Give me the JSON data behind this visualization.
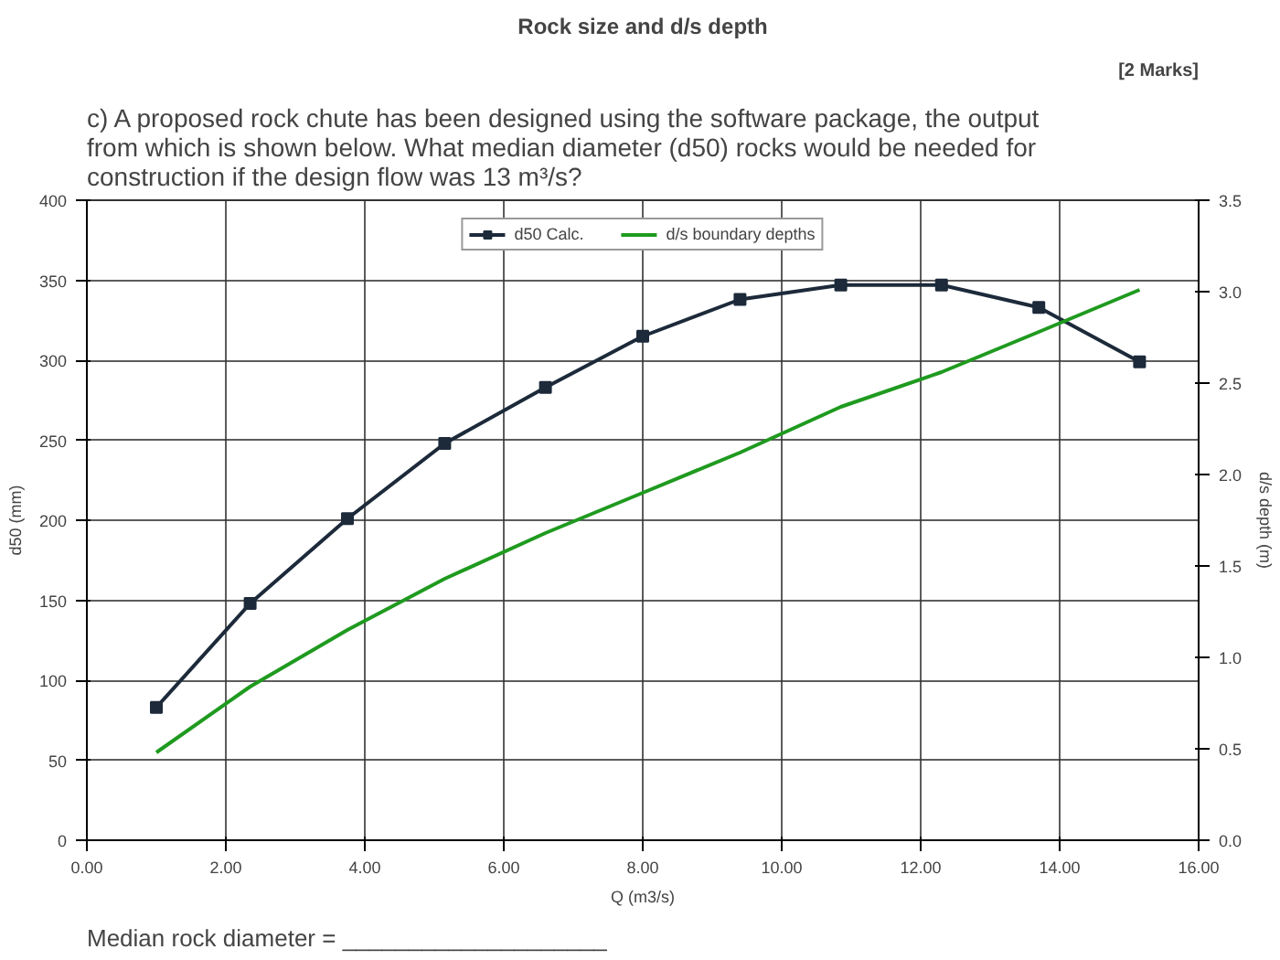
{
  "chart_data": {
    "type": "line",
    "title": "Rock size and d/s depth",
    "annotations": [
      "c) A proposed rock chute has been designed using the software package, the output from which is shown below. What median diameter (d50) rocks would be needed for construction if the design flow was 13 m³/s?",
      "[2 Marks]",
      "Median rock diameter = ____________________"
    ],
    "xlabel": "Q (m3/s)",
    "ylabel": "d50 (mm)",
    "y2label": "d/s depth (m)",
    "series": [
      {
        "name": "d50 Calc.",
        "color": "#1c2a3a",
        "marker": "square",
        "x": [
          1.0,
          2.35,
          3.75,
          5.15,
          6.6,
          8.0,
          9.4,
          10.85,
          12.3,
          13.7,
          15.15
        ],
        "values": [
          83,
          148,
          201,
          248,
          283,
          315,
          338,
          347,
          347,
          333,
          299
        ]
      },
      {
        "name": "d/s boundary depths",
        "color": "#1f9a1f",
        "marker": "none",
        "axis": "y2",
        "x": [
          1.0,
          2.35,
          3.75,
          5.15,
          6.6,
          8.0,
          9.4,
          10.85,
          12.3,
          13.7,
          15.15
        ],
        "values": [
          0.48,
          0.84,
          1.15,
          1.43,
          1.68,
          1.9,
          2.12,
          2.37,
          2.56,
          2.78,
          3.01
        ]
      }
    ],
    "xlim": [
      0,
      16
    ],
    "ylim": [
      0,
      400
    ],
    "y2lim": [
      0,
      3.5
    ],
    "xticks": [
      {
        "value": 0,
        "label": "0.00"
      },
      {
        "value": 2,
        "label": "2.00"
      },
      {
        "value": 4,
        "label": "4.00"
      },
      {
        "value": 6,
        "label": "6.00"
      },
      {
        "value": 8,
        "label": "8.00"
      },
      {
        "value": 10,
        "label": "10.00"
      },
      {
        "value": 12,
        "label": "12.00"
      },
      {
        "value": 14,
        "label": "14.00"
      },
      {
        "value": 16,
        "label": "16.00"
      }
    ],
    "yticks": [
      0,
      50,
      100,
      150,
      200,
      250,
      300,
      350,
      400
    ],
    "y2ticks": [
      {
        "value": 0,
        "label": "0.0"
      },
      {
        "value": 0.5,
        "label": "0.5"
      },
      {
        "value": 1,
        "label": "1.0"
      },
      {
        "value": 1.5,
        "label": "1.5"
      },
      {
        "value": 2,
        "label": "2.0"
      },
      {
        "value": 2.5,
        "label": "2.5"
      },
      {
        "value": 3,
        "label": "3.0"
      },
      {
        "value": 3.5,
        "label": "3.5"
      }
    ],
    "grid": true,
    "legend": "top",
    "line_style": "solid"
  }
}
